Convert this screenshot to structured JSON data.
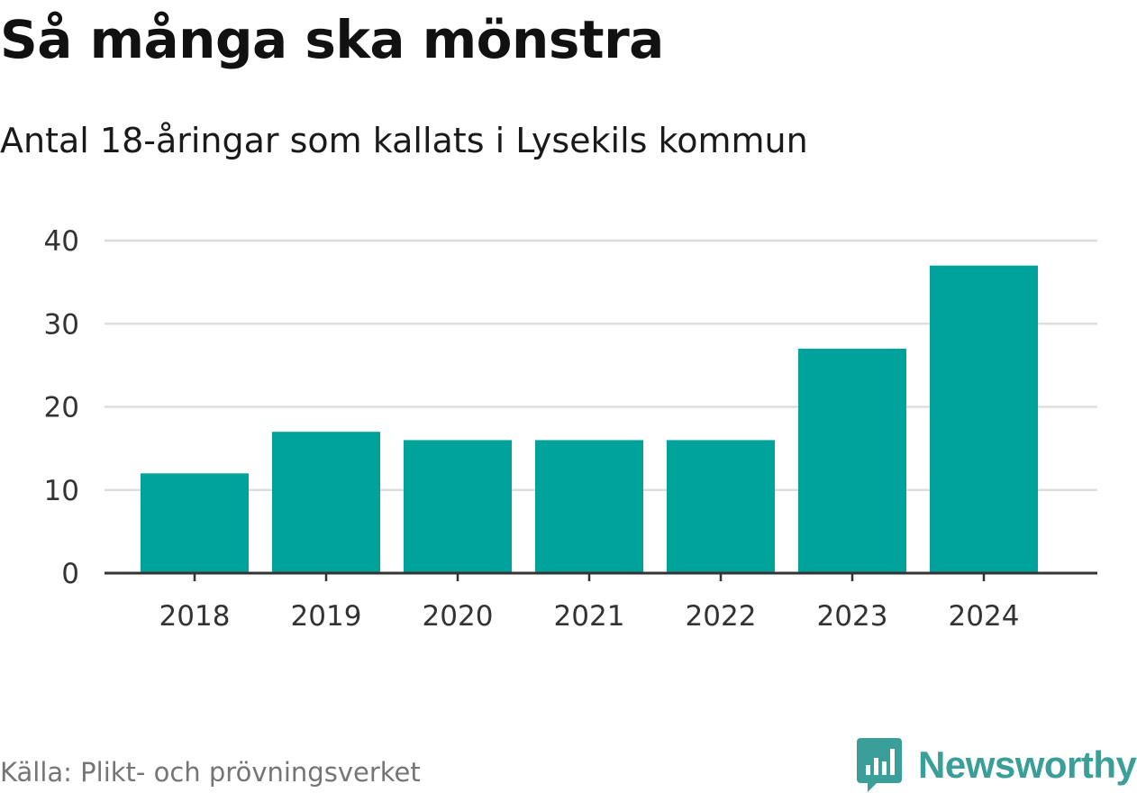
{
  "colors": {
    "bar": "#00a39b",
    "grid": "#dddddd",
    "axis": "#333333",
    "brand": "#3a9e99"
  },
  "chart_data": {
    "type": "bar",
    "title": "Så många ska mönstra",
    "subtitle": "Antal 18-åringar som kallats i Lysekils kommun",
    "categories": [
      "2018",
      "2019",
      "2020",
      "2021",
      "2022",
      "2023",
      "2024"
    ],
    "values": [
      12,
      17,
      16,
      16,
      16,
      27,
      37
    ],
    "xlabel": "",
    "ylabel": "",
    "ylim": [
      0,
      40
    ],
    "yticks": [
      0,
      10,
      20,
      30,
      40
    ],
    "grid": true,
    "legend": "none"
  },
  "footer": {
    "source": "Källa: Plikt- och prövningsverket",
    "brand": "Newsworthy"
  }
}
